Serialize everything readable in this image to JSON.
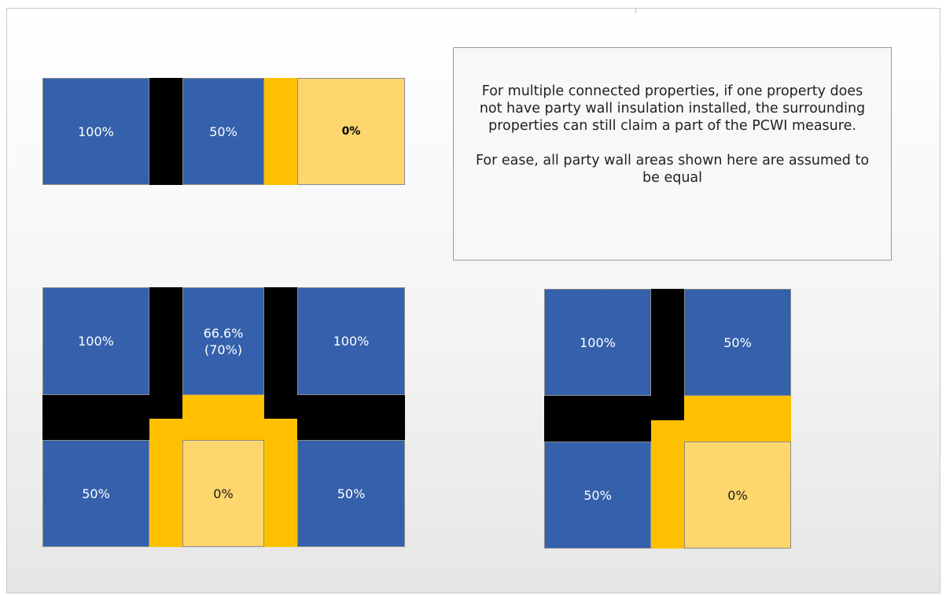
{
  "note": {
    "paragraph_1": "For multiple connected properties, if one property does not have party wall insulation installed, the surrounding properties can still claim a part of the PCWI measure.",
    "paragraph_2": "For ease, all party wall areas shown here are assumed to be equal"
  },
  "row_terrace": {
    "property_1": "100%",
    "property_2": "50%",
    "property_3": "0%"
  },
  "grid_six": {
    "top_left": "100%",
    "top_middle": "66.6%\n(70%)",
    "top_right": "100%",
    "bottom_left": "50%",
    "bottom_middle": "0%",
    "bottom_right": "50%"
  },
  "grid_four": {
    "top_left": "100%",
    "top_right": "50%",
    "bottom_left": "50%",
    "bottom_right": "0%"
  },
  "colors": {
    "insulated_property": "#3560ab",
    "uninsulated_property": "#fdd66e",
    "insulated_party_wall": "#000000",
    "uninsulated_party_wall": "#fec000"
  }
}
